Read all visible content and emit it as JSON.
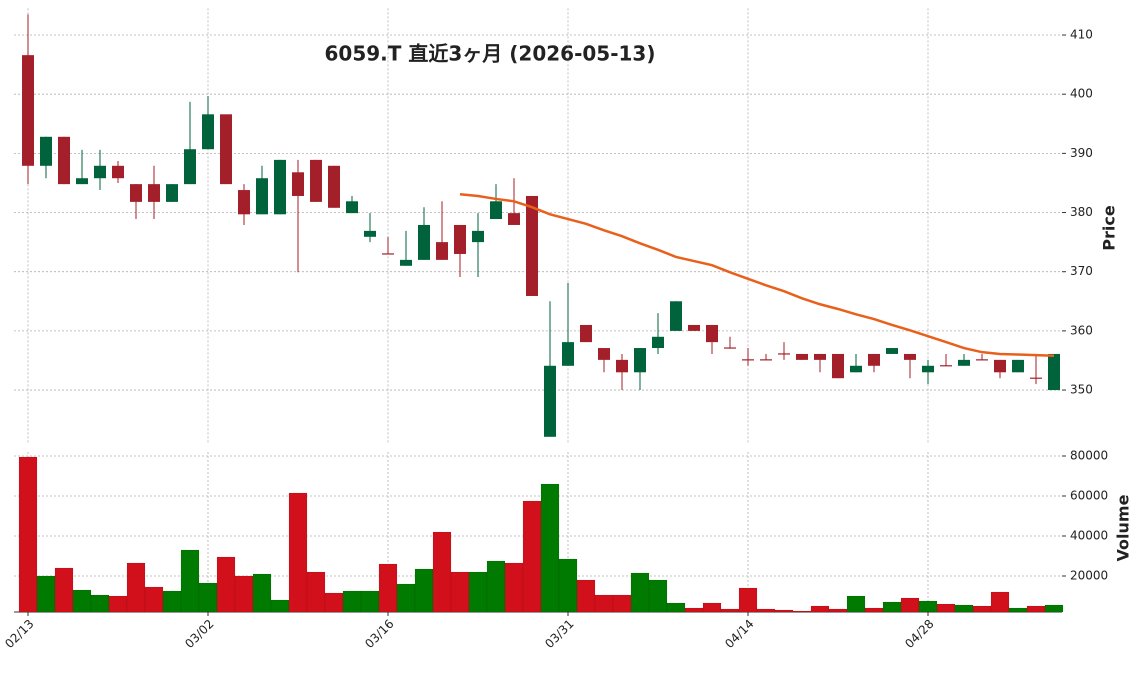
{
  "chart_data": {
    "type": "candlestick",
    "title": "6059.T 直近3ヶ月 (2026-05-13)",
    "ylabel": "Price",
    "y2label": "Volume",
    "categories": [
      "02/13",
      null,
      null,
      null,
      null,
      null,
      null,
      null,
      null,
      null,
      "03/02",
      null,
      null,
      null,
      null,
      null,
      null,
      null,
      null,
      null,
      "03/16",
      null,
      null,
      null,
      null,
      null,
      null,
      null,
      null,
      null,
      "03/31",
      null,
      null,
      null,
      null,
      null,
      null,
      null,
      null,
      null,
      "04/14",
      null,
      null,
      null,
      null,
      null,
      null,
      null,
      null,
      null,
      "04/28",
      null,
      null,
      null,
      null,
      null,
      null,
      null
    ],
    "open": [
      406.6,
      387.9,
      392.8,
      384.8,
      385.8,
      387.9,
      384.8,
      384.8,
      381.8,
      384.8,
      390.7,
      396.6,
      383.8,
      379.7,
      379.7,
      386.8,
      388.9,
      387.9,
      379.9,
      375.9,
      373.1,
      371.0,
      372.0,
      375.0,
      377.9,
      375.0,
      378.9,
      379.9,
      382.8,
      342.1,
      354.1,
      361.0,
      357.1,
      355.1,
      353.0,
      357.1,
      360.0,
      361.0,
      361.0,
      357.2,
      355.2,
      355.2,
      356.2,
      356.1,
      356.1,
      356.1,
      353.0,
      356.1,
      356.1,
      356.1,
      353.0,
      354.2,
      354.1,
      355.2,
      355.1,
      353.0,
      352.1,
      350.0
    ],
    "high": [
      413.5,
      392.8,
      392.8,
      390.6,
      390.6,
      388.7,
      384.8,
      387.9,
      384.8,
      398.7,
      399.7,
      396.6,
      384.8,
      387.9,
      388.9,
      388.9,
      388.9,
      387.9,
      382.8,
      379.9,
      375.9,
      376.9,
      380.9,
      381.9,
      377.9,
      379.9,
      384.8,
      385.8,
      382.8,
      365.0,
      368.1,
      361.0,
      357.1,
      356.1,
      357.1,
      363.0,
      365.0,
      361.0,
      361.0,
      359.0,
      357.1,
      356.1,
      358.1,
      356.1,
      356.1,
      356.1,
      356.1,
      356.1,
      357.1,
      356.1,
      355.1,
      356.1,
      356.1,
      356.1,
      355.1,
      355.1,
      356.1,
      356.1
    ],
    "low": [
      384.8,
      385.8,
      384.8,
      384.8,
      383.8,
      385.0,
      378.9,
      378.9,
      381.8,
      384.8,
      390.7,
      384.8,
      377.9,
      379.7,
      379.7,
      369.9,
      381.8,
      380.8,
      379.9,
      375.0,
      372.9,
      371.0,
      372.0,
      372.0,
      369.1,
      369.1,
      378.9,
      377.9,
      365.9,
      342.1,
      354.1,
      358.1,
      353.0,
      350.0,
      350.0,
      356.1,
      360.0,
      360.0,
      356.1,
      357.0,
      354.1,
      355.0,
      355.1,
      355.1,
      353.0,
      352.0,
      353.0,
      353.0,
      356.1,
      352.0,
      351.0,
      354.0,
      354.1,
      355.0,
      352.0,
      353.0,
      351.0,
      350.0
    ],
    "close": [
      387.9,
      392.8,
      384.8,
      385.8,
      387.9,
      385.8,
      381.8,
      381.8,
      384.8,
      390.7,
      396.6,
      384.8,
      379.7,
      385.8,
      388.9,
      382.8,
      381.8,
      380.8,
      381.9,
      376.9,
      372.9,
      372.0,
      377.9,
      372.0,
      373.0,
      376.9,
      381.9,
      377.9,
      365.9,
      354.1,
      358.1,
      358.1,
      355.1,
      353.0,
      357.1,
      359.0,
      365.0,
      360.0,
      358.1,
      357.0,
      355.0,
      355.0,
      356.0,
      355.1,
      355.1,
      352.0,
      354.1,
      354.1,
      357.1,
      355.1,
      354.1,
      354.0,
      355.1,
      355.0,
      353.0,
      355.1,
      351.9,
      356.1
    ],
    "volume": [
      79500,
      20000,
      24000,
      13000,
      10500,
      10000,
      26500,
      14500,
      12500,
      33000,
      16500,
      29500,
      20000,
      21000,
      8000,
      61500,
      22000,
      11500,
      12500,
      12500,
      26000,
      16000,
      23500,
      42000,
      22000,
      22000,
      27500,
      26500,
      57500,
      66000,
      28500,
      18000,
      10500,
      10500,
      21500,
      18000,
      6500,
      4000,
      6500,
      3500,
      14000,
      3500,
      3000,
      2500,
      5000,
      3500,
      10000,
      4000,
      7000,
      9000,
      7500,
      6000,
      5500,
      5000,
      12000,
      4000,
      5000,
      5500
    ],
    "ma": {
      "color": "#e8601c",
      "values": [
        null,
        null,
        null,
        null,
        null,
        null,
        null,
        null,
        null,
        null,
        null,
        null,
        null,
        null,
        null,
        null,
        null,
        null,
        null,
        null,
        null,
        null,
        null,
        null,
        383.1,
        382.8,
        382.3,
        381.9,
        380.9,
        379.7,
        378.9,
        378.1,
        377.0,
        376.0,
        374.8,
        373.7,
        372.5,
        371.8,
        371.1,
        369.9,
        368.8,
        367.7,
        366.7,
        365.5,
        364.5,
        363.7,
        362.8,
        362.0,
        361.0,
        360.1,
        359.1,
        358.1,
        357.1,
        356.4,
        356.1,
        356.0,
        355.9,
        355.8
      ]
    },
    "up_color": "#00633c",
    "down_color": "#a31f2a",
    "volume_up_color": "#007a00",
    "volume_down_color": "#d1101c",
    "ylim": [
      341,
      414.5
    ],
    "yticks": [
      350,
      360,
      370,
      380,
      390,
      400,
      410
    ],
    "y2lim": [
      2000,
      82000
    ],
    "y2ticks": [
      20000,
      40000,
      60000,
      80000
    ],
    "grid": true
  }
}
